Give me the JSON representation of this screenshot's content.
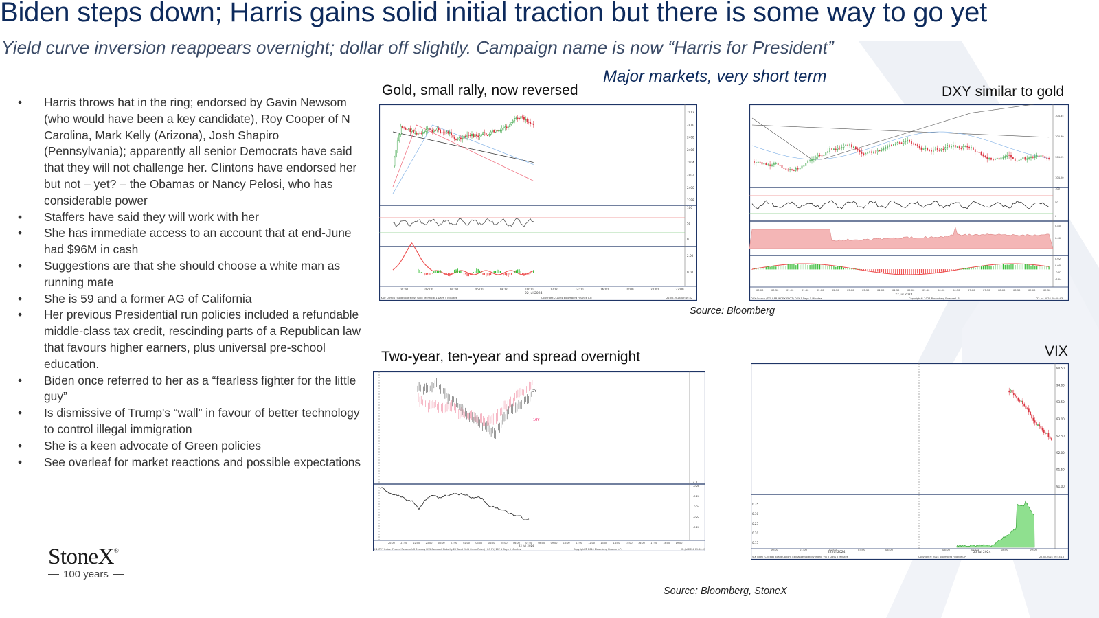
{
  "title": "Biden steps down; Harris gains solid initial traction but there is some way to go yet",
  "subtitle": "Yield curve inversion reappears overnight; dollar off slightly.  Campaign name is now “Harris for President”",
  "section_heading": "Major markets, very short term",
  "bullet_glyph": "•",
  "bullets": [
    "Harris throws hat in the ring; endorsed by Gavin Newsom (who would have been a key candidate), Roy Cooper of N Carolina, Mark Kelly (Arizona), Josh Shapiro (Pennsylvania); apparently all senior Democrats have said that they will not challenge her.  Clintons have endorsed her but not – yet? – the Obamas or Nancy Pelosi, who has considerable power",
    "Staffers have said they will work with her",
    "She has immediate access to an account that at end-June had $96M in cash",
    "Suggestions are that she should choose a white man as running mate",
    "She is 59 and a former AG of California",
    "Her previous Presidential run policies included a refundable middle-class tax credit, rescinding parts of a Republican law that favours higher earners, plus universal pre-school education.",
    "Biden once referred to her as a “fearless fighter for the little guy”",
    "Is dismissive of Trump's “wall” in favour of better technology to control illegal immigration",
    "She is a keen advocate of Green policies",
    "See overleaf for market reactions and possible expectations"
  ],
  "logo": {
    "name": "StoneX",
    "mark": "®",
    "tagline": "100 years"
  },
  "colors": {
    "navy": "#0d2a5c",
    "chart_frame": "#1f3566",
    "up": "#2e9e3a",
    "down": "#d9333f"
  },
  "charts": {
    "gold": {
      "title": "Gold, small rally, now reversed",
      "price_ticks": [
        "2412",
        "2410",
        "2408",
        "2406",
        "2404",
        "2402",
        "2400",
        "2398"
      ],
      "rsi_ticks": [
        "100",
        "50",
        "0"
      ],
      "macd_ticks": [
        "2.00",
        "0.00"
      ],
      "time_ticks": [
        "00:00",
        "02:00",
        "04:00",
        "06:00",
        "08:00",
        "10:00",
        "12:00",
        "14:00",
        "16:00",
        "18:00",
        "20:00",
        "22:00"
      ],
      "date_label": "22 Jul 2024",
      "footer_left": "XAU Curncy (Gold Spot   $/Oz) Gold Technical  1 Days 5 Minutes",
      "footer_mid": "Copyright© 2024 Bloomberg Finance L.P.",
      "footer_right": "22-Jul-2024 09:49:32"
    },
    "dxy": {
      "title": "DXY similar to gold",
      "price_ticks": [
        "104.35",
        "104.30",
        "104.25",
        "104.20"
      ],
      "rsi_ticks": [
        "100",
        "50",
        "0"
      ],
      "mid_ticks": [
        "0.80",
        "0.60"
      ],
      "macd_ticks": [
        "0.02",
        "0.00",
        "-0.02",
        "-0.04"
      ],
      "time_ticks": [
        "00:00",
        "00:30",
        "01:00",
        "01:30",
        "02:00",
        "02:30",
        "03:00",
        "03:30",
        "04:00",
        "04:30",
        "05:00",
        "05:30",
        "06:00",
        "06:30",
        "07:00",
        "07:30",
        "08:00",
        "08:30",
        "09:00",
        "09:30"
      ],
      "date_label": "22 Jul 2024",
      "footer_left": "DXY Curncy (DOLLAR INDEX SPOT) DXY 1 Days 5 Minutes",
      "footer_mid": "Copyright© 2024 Bloomberg Finance L.P.",
      "footer_right": "22-Jul-2024 09:50:43"
    },
    "yields": {
      "title": "Two-year, ten-year and spread overnight",
      "label_2y": "2Y",
      "label_10y": "10Y",
      "top_right_tick": "4.2",
      "spread_ticks": [
        "-0.20",
        "-0.22",
        "-0.24",
        "-0.26",
        "-0.28"
      ],
      "time_ticks": [
        "20:00",
        "21:00",
        "22:00",
        "23:00",
        "00:00",
        "01:00",
        "02:00",
        "03:00",
        "04:00",
        "05:00",
        "06:00",
        "07:00",
        "08:00",
        "09:00",
        "10:00",
        "11:00",
        "12:00",
        "13:00",
        "14:00",
        "15:00",
        "16:00",
        "17:00",
        "18:00",
        "19:00"
      ],
      "date_label": "22 Jul 2024",
      "footer_left": "H15T2Y Index (Federal Reserve US Treasury H15 Constant Maturity 2Y Bond Yield Curve Rates) H15 2Y, 10Y 1 Days 5 Minutes",
      "footer_mid": "Copyright© 2024 Bloomberg Finance L.P.",
      "footer_right": "22-Jul-2024 09:50:09"
    },
    "vix": {
      "title": "VIX",
      "price_ticks": [
        "94.50",
        "94.00",
        "93.50",
        "93.00",
        "92.50",
        "92.00",
        "91.50",
        "91.00"
      ],
      "volume_ticks": [
        "0.35",
        "0.30",
        "0.25",
        "0.20",
        "0.15"
      ],
      "time_ticks": [
        "00:00",
        "01:00",
        "02:00",
        "03:00",
        "04:00",
        "06:00",
        "07:00",
        "08:00",
        "09:00"
      ],
      "date_left": "22 Jul 2024",
      "date_right": "23 Jul 2024",
      "footer_left": "VIX Index (Chicago Board Options Exchange Volatility Index) VIX 2 Days 5 Minutes",
      "footer_mid": "Copyright© 2024 Bloomberg Finance L.P.",
      "footer_right": "22-Jul-2024 09:53:18"
    }
  },
  "source_top": "Source: Bloomberg",
  "source_bottom": "Source: Bloomberg, StoneX"
}
